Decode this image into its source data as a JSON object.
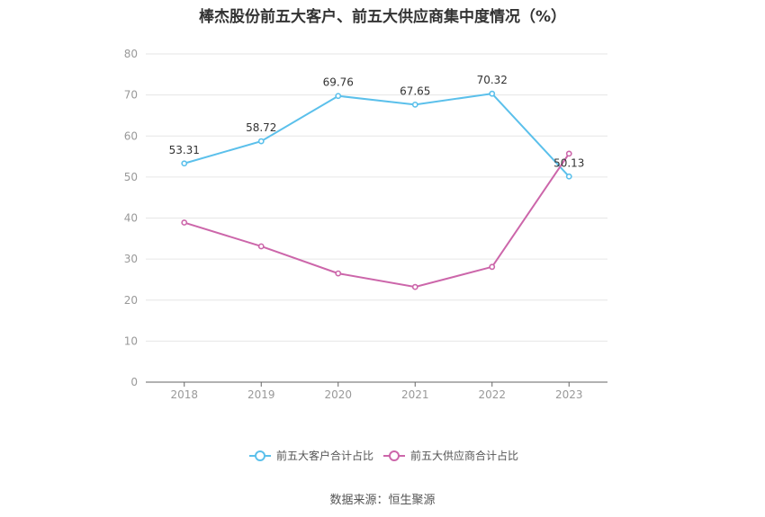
{
  "title": "棒杰股份前五大客户、前五大供应商集中度情况（%）",
  "source": "数据来源：恒生聚源",
  "chart_data": {
    "type": "line",
    "title": "棒杰股份前五大客户、前五大供应商集中度情况（%）",
    "x": [
      "2018",
      "2019",
      "2020",
      "2021",
      "2022",
      "2023"
    ],
    "ylim": [
      0,
      80
    ],
    "yticks": [
      0,
      10,
      20,
      30,
      40,
      50,
      60,
      70,
      80
    ],
    "grid": true,
    "legend": "bottom",
    "series": [
      {
        "name": "前五大客户合计占比",
        "color": "#5bc0eb",
        "values": [
          53.31,
          58.72,
          69.76,
          67.65,
          70.32,
          50.13
        ],
        "labels": [
          "53.31",
          "58.72",
          "69.76",
          "67.65",
          "70.32",
          "50.13"
        ]
      },
      {
        "name": "前五大供应商合计占比",
        "color": "#cc66aa",
        "values": [
          38.9,
          33.1,
          26.5,
          23.2,
          28.1,
          55.7
        ],
        "labels": null
      }
    ]
  }
}
